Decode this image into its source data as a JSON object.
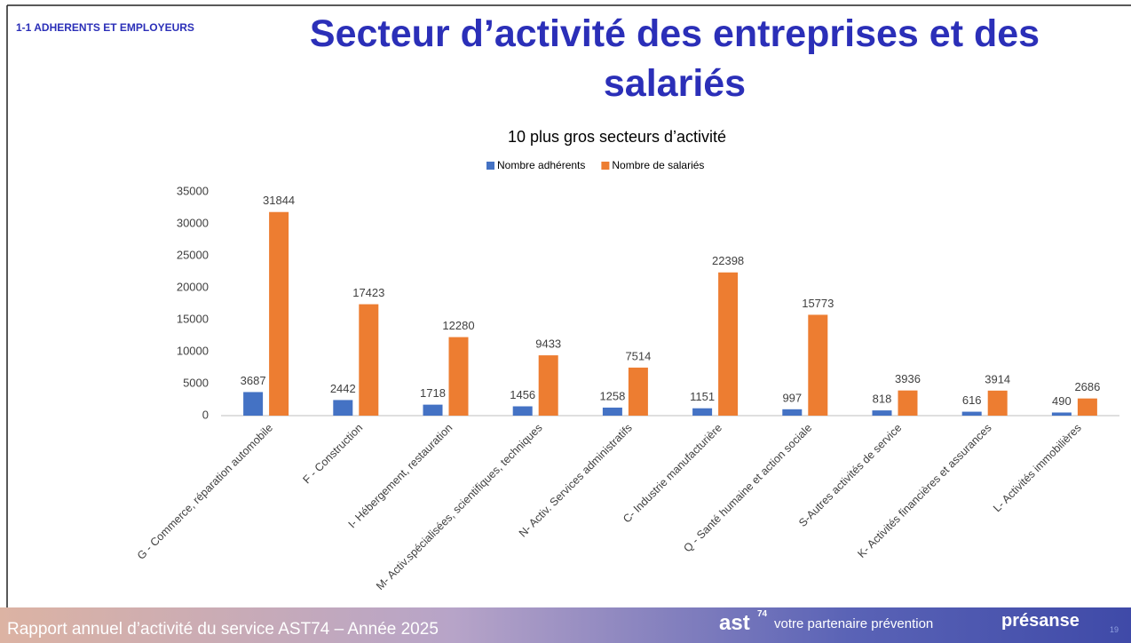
{
  "header": {
    "section": "1-1 ADHERENTS ET EMPLOYEURS",
    "title": "Secteur d’activité des entreprises et des salariés"
  },
  "chart_data": {
    "type": "bar",
    "title": "10 plus gros secteurs d’activité",
    "categories": [
      "G - Commerce, réparation automobile",
      "F - Construction",
      "I- Hébergement, restauration",
      "M- Activ.spécialisées, scientifiques, techniques",
      "N- Activ. Services administratifs",
      "C- Industrie manufacturière",
      "Q - Santé humaine et action sociale",
      "S-Autres activités de service",
      "K- Activités financières et assurances",
      "L- Activités immobilières"
    ],
    "series": [
      {
        "name": "Nombre adhérents",
        "color": "#4472c4",
        "values": [
          3687,
          2442,
          1718,
          1456,
          1258,
          1151,
          997,
          818,
          616,
          490
        ]
      },
      {
        "name": "Nombre de salariés",
        "color": "#ed7d31",
        "values": [
          31844,
          17423,
          12280,
          9433,
          7514,
          22398,
          15773,
          3936,
          3914,
          2686
        ]
      }
    ],
    "ylim": [
      0,
      35000
    ],
    "yticks": [
      0,
      5000,
      10000,
      15000,
      20000,
      25000,
      30000,
      35000
    ],
    "grid": false,
    "legend": "top"
  },
  "footer": {
    "report": "Rapport annuel d’activité du service AST74 – Année 2025",
    "brand": "ast",
    "brand_sup": "74",
    "tagline": "votre partenaire prévention",
    "partner": "présanse",
    "page": "19"
  }
}
